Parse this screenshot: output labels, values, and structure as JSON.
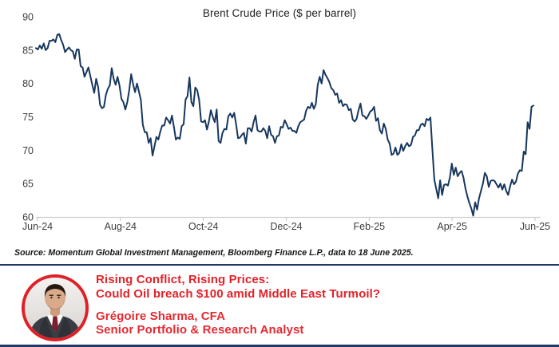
{
  "colors": {
    "line_navy": "#17375e",
    "divider_navy": "#1f3864",
    "accent_red": "#e3222a",
    "axis_gray": "#cfcfcf",
    "tick_label_gray": "#3d3d3d",
    "title_dark": "#1f1f1f"
  },
  "chart_data": {
    "type": "line",
    "title": "Brent Crude Price ($ per barrel)",
    "xlabel": "",
    "ylabel": "",
    "x_tick_labels": [
      "Jun-24",
      "Aug-24",
      "Oct-24",
      "Dec-24",
      "Feb-25",
      "Apr-25",
      "Jun-25"
    ],
    "y_ticks": [
      60,
      65,
      70,
      75,
      80,
      85,
      90
    ],
    "ylim": [
      60,
      90
    ],
    "grid": false,
    "legend": false,
    "series": [
      {
        "name": "Brent Crude Price ($ per barrel)",
        "values": [
          85.3,
          85.1,
          85.7,
          85.2,
          86.0,
          85.0,
          85.3,
          86.4,
          86.4,
          86.6,
          86.2,
          87.3,
          87.4,
          86.5,
          85.8,
          84.7,
          85.1,
          85.4,
          85.0,
          84.8,
          83.7,
          85.1,
          85.1,
          82.6,
          82.4,
          81.0,
          81.7,
          82.4,
          81.1,
          79.8,
          78.6,
          80.7,
          79.5,
          76.8,
          76.3,
          76.5,
          78.3,
          79.2,
          79.7,
          82.3,
          80.7,
          79.8,
          81.0,
          79.7,
          77.7,
          77.2,
          76.1,
          77.2,
          79.0,
          81.4,
          79.9,
          78.7,
          80.0,
          78.8,
          77.5,
          73.8,
          72.7,
          72.7,
          71.1,
          71.8,
          69.2,
          70.6,
          72.0,
          71.6,
          72.8,
          73.7,
          73.7,
          74.9,
          74.5,
          74.0,
          75.2,
          73.5,
          71.6,
          71.9,
          71.7,
          73.6,
          73.9,
          77.6,
          78.1,
          80.9,
          77.2,
          76.6,
          79.4,
          79.0,
          77.5,
          74.3,
          74.2,
          74.5,
          73.1,
          74.3,
          76.0,
          75.0,
          74.2,
          76.1,
          71.4,
          71.1,
          72.6,
          73.2,
          73.1,
          75.1,
          75.5,
          74.9,
          75.6,
          73.9,
          71.8,
          71.9,
          72.3,
          72.6,
          71.0,
          73.3,
          73.3,
          72.8,
          74.2,
          75.2,
          73.0,
          72.8,
          72.8,
          73.3,
          72.9,
          71.8,
          73.6,
          72.3,
          72.1,
          71.1,
          72.1,
          72.2,
          73.5,
          73.4,
          74.5,
          73.9,
          73.2,
          73.4,
          72.9,
          72.9,
          72.6,
          73.6,
          74.2,
          74.4,
          74.6,
          75.9,
          76.5,
          76.3,
          77.1,
          76.2,
          76.9,
          79.8,
          81.0,
          80.0,
          82.0,
          81.3,
          80.8,
          80.2,
          79.3,
          79.0,
          78.3,
          78.5,
          77.1,
          77.5,
          76.6,
          76.9,
          76.8,
          76.0,
          76.2,
          74.6,
          74.3,
          74.7,
          76.0,
          77.0,
          75.2,
          75.1,
          74.7,
          75.2,
          75.8,
          76.0,
          76.5,
          74.4,
          74.8,
          73.0,
          72.5,
          74.0,
          73.2,
          71.6,
          71.0,
          69.3,
          69.5,
          70.4,
          69.3,
          69.6,
          70.9,
          69.9,
          70.6,
          71.1,
          70.6,
          70.8,
          72.0,
          72.2,
          73.0,
          73.0,
          73.8,
          74.0,
          73.6,
          74.7,
          74.5,
          74.9,
          70.1,
          65.6,
          64.2,
          62.8,
          65.5,
          63.3,
          64.8,
          64.9,
          64.7,
          65.9,
          68.0,
          66.3,
          67.4,
          66.1,
          66.6,
          66.9,
          65.9,
          64.3,
          63.1,
          62.1,
          61.3,
          60.2,
          62.2,
          61.1,
          62.8,
          63.9,
          65.0,
          66.6,
          66.1,
          64.5,
          65.4,
          65.5,
          65.4,
          64.9,
          64.4,
          65.0,
          64.1,
          64.9,
          63.9,
          63.3,
          64.6,
          65.6,
          64.9,
          65.3,
          66.5,
          67.0,
          66.9,
          69.8,
          69.4,
          74.2,
          73.2,
          76.5,
          76.7
        ]
      }
    ]
  },
  "source_note": "Source: Momentum Global Investment Management, Bloomberg Finance L.P., data to 18 June 2025.",
  "footer": {
    "headline_line1": "Rising Conflict, Rising Prices:",
    "headline_line2": "Could Oil breach $100 amid Middle East Turmoil?",
    "author_name": "Grégoire Sharma, CFA",
    "author_role": "Senior Portfolio & Research Analyst",
    "avatar_description": "headshot of man in dark suit, white shirt and dark red tie"
  }
}
